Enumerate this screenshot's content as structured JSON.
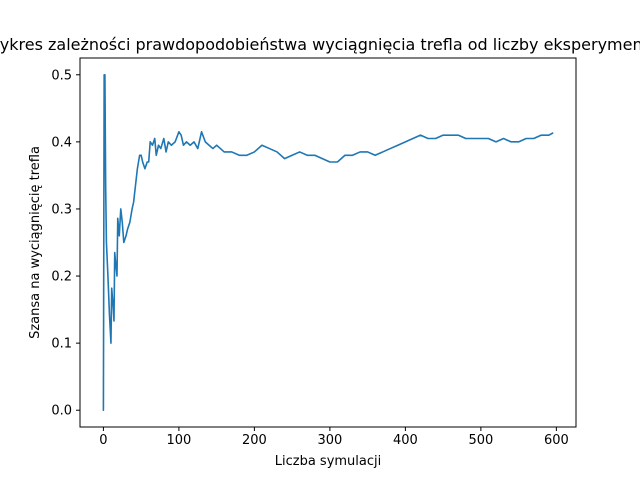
{
  "chart_data": {
    "type": "line",
    "title": "Wykres zależności prawdopodobieństwa wyciągnięcia trefla od liczby eksperymentów",
    "xlabel": "Liczba symulacji",
    "ylabel": "Szansa na wyciągnięcię trefla",
    "xlim": [
      -31,
      626
    ],
    "ylim": [
      -0.025,
      0.525
    ],
    "xticks": [
      0,
      100,
      200,
      300,
      400,
      500,
      600
    ],
    "yticks": [
      0.0,
      0.1,
      0.2,
      0.3,
      0.4,
      0.5
    ],
    "ytick_labels": [
      "0.0",
      "0.1",
      "0.2",
      "0.3",
      "0.4",
      "0.5"
    ],
    "grid": false,
    "series": [
      {
        "color": "#1f77b4",
        "x": [
          0,
          1,
          2,
          3,
          4,
          6,
          8,
          10,
          11,
          12,
          13,
          14,
          15,
          16,
          17,
          18,
          19,
          20,
          21,
          23,
          25,
          27,
          30,
          32,
          35,
          38,
          40,
          42,
          45,
          48,
          50,
          52,
          55,
          58,
          60,
          62,
          65,
          68,
          70,
          73,
          76,
          80,
          83,
          86,
          90,
          95,
          100,
          103,
          106,
          110,
          115,
          120,
          125,
          130,
          135,
          140,
          145,
          150,
          155,
          160,
          170,
          180,
          190,
          200,
          210,
          220,
          230,
          240,
          250,
          260,
          270,
          280,
          290,
          300,
          310,
          320,
          330,
          340,
          350,
          360,
          370,
          380,
          390,
          400,
          410,
          420,
          430,
          440,
          450,
          460,
          470,
          480,
          490,
          500,
          510,
          520,
          530,
          540,
          550,
          560,
          570,
          580,
          590,
          595
        ],
        "y": [
          0.0,
          0.5,
          0.5,
          0.333,
          0.25,
          0.2,
          0.143,
          0.1,
          0.182,
          0.167,
          0.154,
          0.133,
          0.235,
          0.222,
          0.211,
          0.2,
          0.286,
          0.273,
          0.26,
          0.3,
          0.28,
          0.25,
          0.26,
          0.27,
          0.28,
          0.3,
          0.31,
          0.33,
          0.36,
          0.38,
          0.38,
          0.37,
          0.36,
          0.37,
          0.37,
          0.4,
          0.395,
          0.405,
          0.38,
          0.395,
          0.39,
          0.405,
          0.385,
          0.4,
          0.395,
          0.4,
          0.415,
          0.41,
          0.395,
          0.4,
          0.395,
          0.4,
          0.39,
          0.415,
          0.4,
          0.395,
          0.39,
          0.395,
          0.39,
          0.385,
          0.385,
          0.38,
          0.38,
          0.385,
          0.395,
          0.39,
          0.385,
          0.375,
          0.38,
          0.385,
          0.38,
          0.38,
          0.375,
          0.37,
          0.37,
          0.38,
          0.38,
          0.385,
          0.385,
          0.38,
          0.385,
          0.39,
          0.395,
          0.4,
          0.405,
          0.41,
          0.405,
          0.405,
          0.41,
          0.41,
          0.41,
          0.405,
          0.405,
          0.405,
          0.405,
          0.4,
          0.405,
          0.4,
          0.4,
          0.405,
          0.405,
          0.41,
          0.41,
          0.413
        ]
      }
    ]
  }
}
